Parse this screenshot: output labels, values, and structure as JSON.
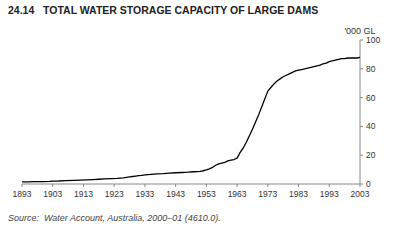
{
  "chart_data": {
    "type": "line",
    "title": "24.14   TOTAL WATER STORAGE CAPACITY OF LARGE DAMS",
    "ylabel": "'000 GL",
    "source": "Source:  Water Account, Australia, 2000–01 (4610.0).",
    "color": "#000000",
    "xlim": [
      1893,
      2003
    ],
    "ylim": [
      0,
      100
    ],
    "xticks": [
      1893,
      1903,
      1913,
      1923,
      1933,
      1943,
      1953,
      1963,
      1973,
      1983,
      1993,
      2003
    ],
    "yticks": [
      0,
      20,
      40,
      60,
      80,
      100
    ],
    "x": [
      1893,
      1895,
      1897,
      1900,
      1902,
      1903,
      1905,
      1907,
      1910,
      1912,
      1914,
      1916,
      1918,
      1920,
      1922,
      1924,
      1925,
      1926,
      1927,
      1928,
      1929,
      1930,
      1931,
      1932,
      1933,
      1934,
      1935,
      1937,
      1939,
      1941,
      1943,
      1945,
      1947,
      1949,
      1951,
      1952,
      1953,
      1954,
      1955,
      1956,
      1957,
      1958,
      1959,
      1960,
      1961,
      1962,
      1963,
      1964,
      1965,
      1966,
      1967,
      1968,
      1969,
      1970,
      1971,
      1972,
      1973,
      1974,
      1975,
      1976,
      1977,
      1978,
      1979,
      1980,
      1981,
      1982,
      1983,
      1984,
      1985,
      1986,
      1987,
      1988,
      1989,
      1990,
      1991,
      1992,
      1993,
      1994,
      1995,
      1996,
      1997,
      1998,
      1999,
      2000,
      2001,
      2002,
      2003
    ],
    "values": [
      1.5,
      1.5,
      1.6,
      1.7,
      1.8,
      2.0,
      2.1,
      2.3,
      2.5,
      2.7,
      2.9,
      3.1,
      3.3,
      3.5,
      3.7,
      3.9,
      4.1,
      4.3,
      4.6,
      4.9,
      5.2,
      5.5,
      5.8,
      6.0,
      6.3,
      6.5,
      6.7,
      7.0,
      7.2,
      7.5,
      7.8,
      8.0,
      8.2,
      8.5,
      8.8,
      9.2,
      9.8,
      10.5,
      11.5,
      13.0,
      14.0,
      14.5,
      15.0,
      16.0,
      16.5,
      17.0,
      18.0,
      22.0,
      25.0,
      29.0,
      33.5,
      38.0,
      43.0,
      48.0,
      53.5,
      59.0,
      64.5,
      67.0,
      69.5,
      71.5,
      73.0,
      74.5,
      75.5,
      76.5,
      77.5,
      78.5,
      79.0,
      79.5,
      80.0,
      80.5,
      81.0,
      81.5,
      82.0,
      82.5,
      83.5,
      84.0,
      85.0,
      85.5,
      86.0,
      86.5,
      87.0,
      87.0,
      87.5,
      87.5,
      87.5,
      87.5,
      88.0
    ]
  }
}
